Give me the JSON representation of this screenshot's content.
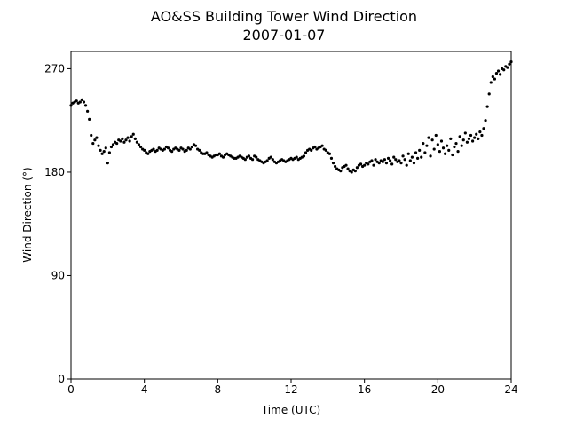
{
  "chart_data": {
    "type": "scatter",
    "title": "AO&SS Building Tower Wind Direction",
    "subtitle": "2007-01-07",
    "x_label": "Time (UTC)",
    "y_label": "Wind Direction (°)",
    "xlim": [
      0,
      24
    ],
    "ylim": [
      0,
      285
    ],
    "xticks": [
      0,
      4,
      8,
      12,
      16,
      20,
      24
    ],
    "yticks": [
      0,
      90,
      180,
      270
    ],
    "color": "#000000",
    "x": [
      0,
      0.1,
      0.2,
      0.3,
      0.4,
      0.5,
      0.6,
      0.7,
      0.8,
      0.9,
      1,
      1.1,
      1.2,
      1.3,
      1.4,
      1.5,
      1.6,
      1.7,
      1.8,
      1.9,
      2,
      2.1,
      2.2,
      2.3,
      2.4,
      2.5,
      2.6,
      2.7,
      2.8,
      2.9,
      3,
      3.1,
      3.2,
      3.3,
      3.4,
      3.5,
      3.6,
      3.7,
      3.8,
      3.9,
      4,
      4.1,
      4.2,
      4.3,
      4.4,
      4.5,
      4.6,
      4.7,
      4.8,
      4.9,
      5,
      5.1,
      5.2,
      5.3,
      5.4,
      5.5,
      5.6,
      5.7,
      5.8,
      5.9,
      6,
      6.1,
      6.2,
      6.3,
      6.4,
      6.5,
      6.6,
      6.7,
      6.8,
      6.9,
      7,
      7.1,
      7.2,
      7.3,
      7.4,
      7.5,
      7.6,
      7.7,
      7.8,
      7.9,
      8,
      8.1,
      8.2,
      8.3,
      8.4,
      8.5,
      8.6,
      8.7,
      8.8,
      8.9,
      9,
      9.1,
      9.2,
      9.3,
      9.4,
      9.5,
      9.6,
      9.7,
      9.8,
      9.9,
      10,
      10.1,
      10.2,
      10.3,
      10.4,
      10.5,
      10.6,
      10.7,
      10.8,
      10.9,
      11,
      11.1,
      11.2,
      11.3,
      11.4,
      11.5,
      11.6,
      11.7,
      11.8,
      11.9,
      12,
      12.1,
      12.2,
      12.3,
      12.4,
      12.5,
      12.6,
      12.7,
      12.8,
      12.9,
      13,
      13.1,
      13.2,
      13.3,
      13.4,
      13.5,
      13.6,
      13.7,
      13.8,
      13.9,
      14,
      14.1,
      14.2,
      14.3,
      14.4,
      14.5,
      14.6,
      14.7,
      14.8,
      14.9,
      15,
      15.1,
      15.2,
      15.3,
      15.4,
      15.5,
      15.6,
      15.7,
      15.8,
      15.9,
      16,
      16.1,
      16.2,
      16.3,
      16.4,
      16.5,
      16.6,
      16.7,
      16.8,
      16.9,
      17,
      17.1,
      17.2,
      17.3,
      17.4,
      17.5,
      17.6,
      17.7,
      17.8,
      17.9,
      18,
      18.1,
      18.2,
      18.3,
      18.4,
      18.5,
      18.6,
      18.7,
      18.8,
      18.9,
      19,
      19.1,
      19.2,
      19.3,
      19.4,
      19.5,
      19.6,
      19.7,
      19.8,
      19.9,
      20,
      20.1,
      20.2,
      20.3,
      20.4,
      20.5,
      20.6,
      20.7,
      20.8,
      20.9,
      21,
      21.1,
      21.2,
      21.3,
      21.4,
      21.5,
      21.6,
      21.7,
      21.8,
      21.9,
      22,
      22.1,
      22.2,
      22.3,
      22.4,
      22.5,
      22.6,
      22.7,
      22.8,
      22.9,
      23,
      23.1,
      23.2,
      23.3,
      23.4,
      23.5,
      23.6,
      23.7,
      23.8,
      23.9,
      24
    ],
    "values": [
      238,
      240,
      241,
      242,
      240,
      241,
      243,
      241,
      238,
      233,
      226,
      212,
      205,
      208,
      210,
      203,
      199,
      196,
      198,
      201,
      188,
      197,
      202,
      204,
      206,
      205,
      208,
      207,
      209,
      206,
      208,
      210,
      207,
      211,
      213,
      209,
      206,
      204,
      202,
      200,
      199,
      197,
      196,
      198,
      199,
      200,
      198,
      199,
      201,
      200,
      199,
      200,
      202,
      201,
      199,
      198,
      200,
      201,
      200,
      199,
      201,
      200,
      198,
      199,
      201,
      200,
      202,
      204,
      203,
      200,
      199,
      197,
      196,
      196,
      197,
      195,
      194,
      193,
      194,
      195,
      195,
      196,
      194,
      193,
      195,
      196,
      195,
      194,
      193,
      192,
      192,
      193,
      194,
      193,
      192,
      191,
      193,
      194,
      192,
      191,
      194,
      193,
      191,
      190,
      189,
      188,
      189,
      190,
      192,
      193,
      191,
      189,
      188,
      189,
      190,
      191,
      190,
      189,
      190,
      191,
      192,
      191,
      192,
      193,
      191,
      192,
      193,
      194,
      197,
      199,
      200,
      199,
      201,
      202,
      200,
      201,
      202,
      203,
      200,
      199,
      197,
      196,
      192,
      188,
      185,
      183,
      182,
      181,
      184,
      185,
      186,
      183,
      181,
      180,
      182,
      181,
      184,
      186,
      187,
      185,
      186,
      188,
      187,
      189,
      190,
      186,
      191,
      189,
      188,
      190,
      189,
      191,
      188,
      192,
      190,
      187,
      193,
      191,
      189,
      190,
      188,
      194,
      191,
      186,
      196,
      190,
      193,
      188,
      197,
      192,
      199,
      193,
      205,
      197,
      203,
      210,
      194,
      208,
      200,
      212,
      204,
      198,
      207,
      201,
      196,
      203,
      199,
      209,
      195,
      202,
      205,
      198,
      211,
      203,
      208,
      214,
      206,
      209,
      212,
      207,
      210,
      213,
      209,
      215,
      212,
      218,
      225,
      237,
      248,
      258,
      263,
      261,
      266,
      268,
      265,
      270,
      269,
      272,
      271,
      274,
      276
    ]
  }
}
